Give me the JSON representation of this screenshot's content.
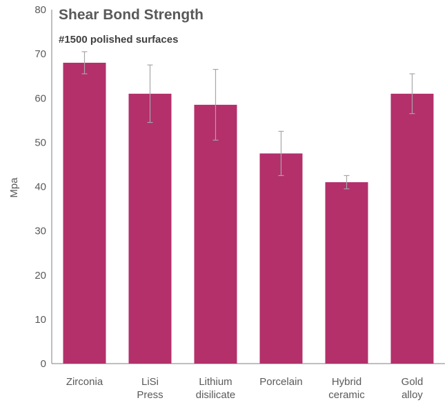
{
  "chart_data": {
    "type": "bar",
    "title": "Shear Bond Strength",
    "subtitle": "#1500 polished surfaces",
    "ylabel": "Mpa",
    "xlabel": "",
    "ylim": [
      0,
      80
    ],
    "yticks": [
      0,
      10,
      20,
      30,
      40,
      50,
      60,
      70,
      80
    ],
    "grid": false,
    "categories": [
      [
        "Zirconia"
      ],
      [
        "LiSi",
        "Press"
      ],
      [
        "Lithium",
        "disilicate"
      ],
      [
        "Porcelain"
      ],
      [
        "Hybrid",
        "ceramic"
      ],
      [
        "Gold",
        "alloy"
      ]
    ],
    "values": [
      68,
      61,
      58.5,
      47.5,
      41,
      61
    ],
    "error_low": [
      65.5,
      54.5,
      50.5,
      42.5,
      39.5,
      56.5
    ],
    "error_high": [
      70.5,
      67.5,
      66.5,
      52.5,
      42.5,
      65.5
    ],
    "colors": {
      "bar": "#b3306b",
      "error": "#a6a6a6",
      "axis": "#7f7f7f"
    }
  }
}
